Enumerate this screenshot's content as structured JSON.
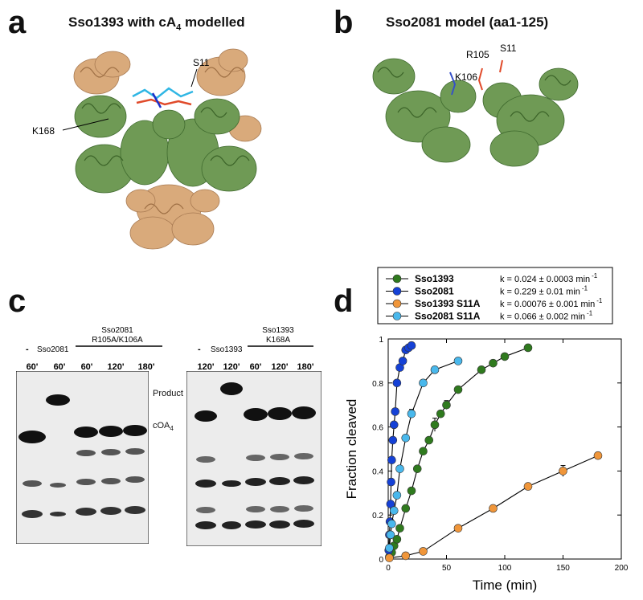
{
  "figure": {
    "panel_a": {
      "letter": "a",
      "title_main": "Sso1393 with cA",
      "title_sub": "4",
      "title_tail": " modelled",
      "labels": {
        "s11": "S11",
        "k168": "K168"
      }
    },
    "panel_b": {
      "letter": "b",
      "title": "Sso2081 model (aa1-125)",
      "labels": {
        "r105": "R105",
        "s11": "S11",
        "k106": "K106"
      }
    },
    "panel_c": {
      "letter": "c",
      "gel1": {
        "dash": "-",
        "lane_label_wt": "Sso2081",
        "mutant_label_line1": "Sso2081",
        "mutant_label_line2": "R105A/K106A",
        "times": [
          "60'",
          "60'",
          "60'",
          "120'",
          "180'"
        ],
        "product_label": "Product",
        "substrate_label_main": "cOA",
        "substrate_label_sub": "4"
      },
      "gel2": {
        "dash": "-",
        "lane_label_wt": "Sso1393",
        "mutant_label_line1": "Sso1393",
        "mutant_label_line2": "K168A",
        "times": [
          "120'",
          "120'",
          "60'",
          "120'",
          "180'"
        ]
      }
    },
    "panel_d": {
      "letter": "d"
    },
    "colors": {
      "green": "#2f7a1e",
      "blue": "#1541d6",
      "orange": "#f0963a",
      "light_blue": "#49b8ec",
      "tan": "#d9aa7b",
      "protein_green": "#6f9a55"
    }
  },
  "chart_data": {
    "type": "scatter",
    "xlabel": "Time (min)",
    "ylabel": "Fraction cleaved",
    "xlim": [
      0,
      200
    ],
    "ylim": [
      0,
      1
    ],
    "xticks": [
      0,
      50,
      100,
      150,
      200
    ],
    "yticks": [
      0,
      0.2,
      0.4,
      0.6,
      0.8,
      1
    ],
    "ytick_labels": [
      "0",
      "0.2",
      "0.4",
      "0.6",
      "0.8",
      "1"
    ],
    "legend_position": "top",
    "series": [
      {
        "name": "Sso1393",
        "rate": "k = 0.024 ± 0.0003 min",
        "rate_sup": "-1",
        "color": "#2f7a1e",
        "x": [
          1,
          3,
          5,
          7.5,
          10,
          15,
          20,
          25,
          30,
          35,
          40,
          45,
          50,
          60,
          80,
          90,
          100,
          120
        ],
        "y": [
          0.01,
          0.03,
          0.06,
          0.09,
          0.14,
          0.23,
          0.31,
          0.41,
          0.49,
          0.54,
          0.61,
          0.66,
          0.7,
          0.77,
          0.86,
          0.89,
          0.92,
          0.96
        ]
      },
      {
        "name": "Sso2081",
        "rate": "k = 0.229 ± 0.01 min",
        "rate_sup": "-1",
        "color": "#1541d6",
        "x": [
          0.5,
          1,
          1.5,
          2,
          2.5,
          3,
          4,
          5,
          6,
          7.5,
          10,
          12.5,
          15,
          17.5,
          20
        ],
        "y": [
          0.04,
          0.11,
          0.17,
          0.25,
          0.35,
          0.45,
          0.54,
          0.61,
          0.67,
          0.8,
          0.87,
          0.9,
          0.95,
          0.96,
          0.97
        ]
      },
      {
        "name": "Sso1393 S11A",
        "rate": "k = 0.00076 ± 0.001 min",
        "rate_sup": "-1",
        "color": "#f0963a",
        "x": [
          1,
          15,
          30,
          60,
          90,
          120,
          150,
          180
        ],
        "y": [
          0.005,
          0.015,
          0.035,
          0.14,
          0.23,
          0.33,
          0.4,
          0.47
        ],
        "error_points": [
          [
            150,
            0.4,
            0.025
          ]
        ]
      },
      {
        "name": "Sso2081 S11A",
        "rate": "k = 0.066 ± 0.002 min",
        "rate_sup": "-1",
        "color": "#49b8ec",
        "x": [
          1,
          2,
          3,
          5,
          7.5,
          10,
          15,
          20,
          30,
          40,
          60
        ],
        "y": [
          0.05,
          0.11,
          0.16,
          0.22,
          0.29,
          0.41,
          0.55,
          0.66,
          0.8,
          0.86,
          0.9
        ],
        "error_points": [
          [
            20,
            0.66,
            0.02
          ]
        ]
      }
    ],
    "green_error_points": [
      [
        40,
        0.61,
        0.03
      ],
      [
        50,
        0.7,
        0.02
      ]
    ]
  }
}
